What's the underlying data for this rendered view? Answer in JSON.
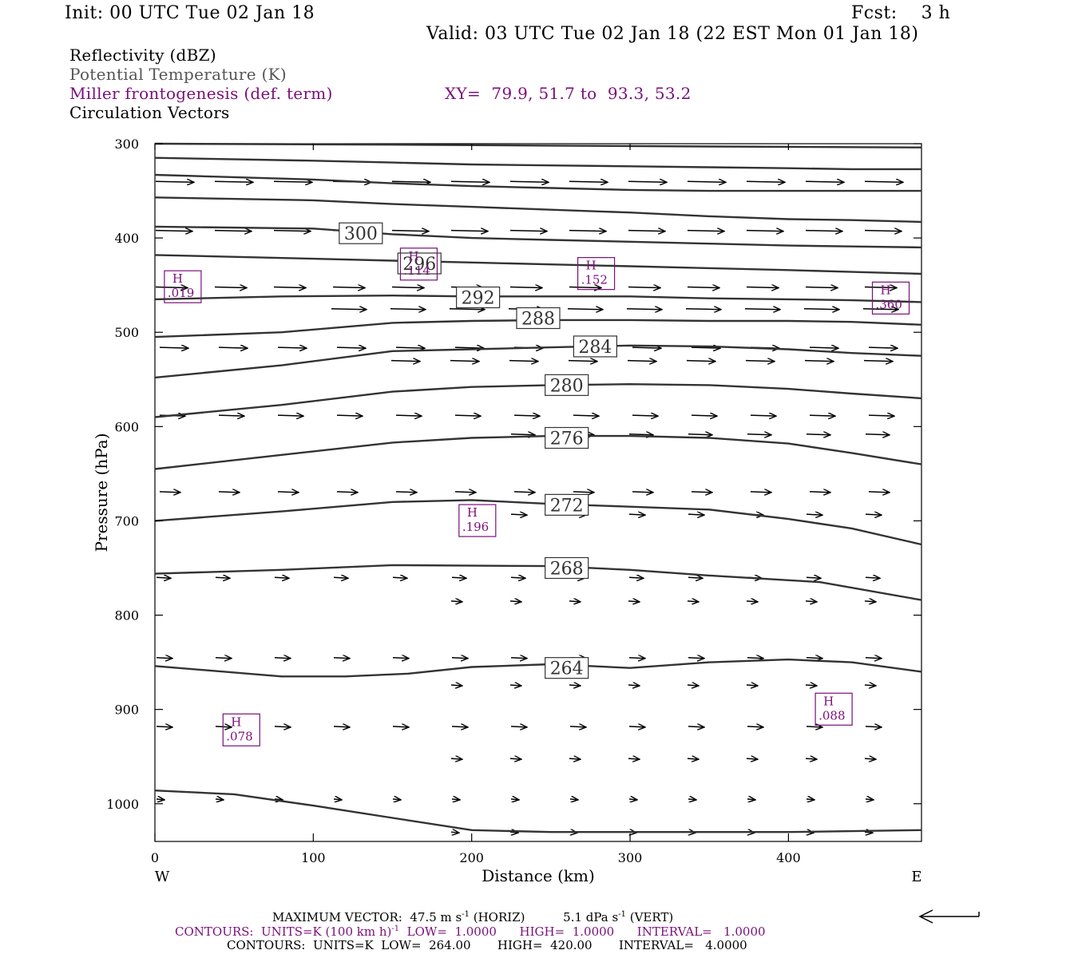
{
  "header": {
    "init": "Init: 00 UTC Tue 02 Jan 18",
    "fcst": "Fcst:    3 h",
    "valid": "Valid: 03 UTC Tue 02 Jan 18 (22 EST Mon 01 Jan 18)"
  },
  "fields": {
    "reflectivity": "Reflectivity (dBZ)",
    "theta": "Potential Temperature (K)",
    "frontogenesis": "Miller frontogenesis (def. term)",
    "xy": "XY=  79.9, 51.7 to  93.3, 53.2",
    "vectors": "Circulation Vectors"
  },
  "footer": {
    "max_vector_prefix": "MAXIMUM VECTOR:  47.5 m s",
    "max_vector_sup1": "-1",
    "max_vector_mid": " (HORIZ)          5.1 dPa s",
    "max_vector_sup2": "-1",
    "max_vector_end": " (VERT)",
    "contours1_prefix": "CONTOURS:  UNITS=K (100 km h)",
    "contours1_sup": "-1",
    "contours1_end": "  LOW=  1.0000      HIGH=  1.0000      INTERVAL=   1.0000",
    "contours2": "CONTOURS:  UNITS=K  LOW=  264.00       HIGH=  420.00       INTERVAL=   4.0000"
  },
  "colors": {
    "theta": "#333333",
    "frontogenesis": "#7a0f7a",
    "vector": "#000000"
  },
  "chart_data": {
    "type": "line",
    "xlabel": "Distance (km)",
    "ylabel": "Pressure (hPa)",
    "xlim": [
      0,
      484
    ],
    "ylim": [
      1040,
      300
    ],
    "x_ticks": [
      0,
      100,
      200,
      300,
      400
    ],
    "y_ticks": [
      300,
      400,
      500,
      600,
      700,
      800,
      900,
      1000
    ],
    "x_end_labels": {
      "left": "W",
      "right": "E"
    },
    "isentropes": [
      {
        "label": "264",
        "label_at": [
          260,
          856
        ],
        "points": [
          [
            0,
            854
          ],
          [
            80,
            865
          ],
          [
            120,
            865
          ],
          [
            160,
            862
          ],
          [
            200,
            855
          ],
          [
            250,
            852
          ],
          [
            300,
            856
          ],
          [
            350,
            850
          ],
          [
            400,
            847
          ],
          [
            440,
            850
          ],
          [
            484,
            860
          ]
        ]
      },
      {
        "label": "268",
        "label_at": [
          260,
          750
        ],
        "points": [
          [
            0,
            756
          ],
          [
            80,
            752
          ],
          [
            150,
            747
          ],
          [
            250,
            748
          ],
          [
            300,
            752
          ],
          [
            350,
            758
          ],
          [
            420,
            765
          ],
          [
            484,
            784
          ]
        ]
      },
      {
        "label": "272",
        "label_at": [
          260,
          683
        ],
        "points": [
          [
            0,
            700
          ],
          [
            80,
            690
          ],
          [
            150,
            680
          ],
          [
            200,
            678
          ],
          [
            250,
            682
          ],
          [
            300,
            685
          ],
          [
            350,
            688
          ],
          [
            400,
            698
          ],
          [
            440,
            708
          ],
          [
            484,
            725
          ]
        ]
      },
      {
        "label": "276",
        "label_at": [
          260,
          612
        ],
        "points": [
          [
            0,
            645
          ],
          [
            80,
            630
          ],
          [
            150,
            617
          ],
          [
            200,
            612
          ],
          [
            250,
            610
          ],
          [
            300,
            610
          ],
          [
            350,
            612
          ],
          [
            400,
            618
          ],
          [
            440,
            628
          ],
          [
            484,
            640
          ]
        ]
      },
      {
        "label": "280",
        "label_at": [
          260,
          556
        ],
        "points": [
          [
            0,
            590
          ],
          [
            80,
            577
          ],
          [
            150,
            563
          ],
          [
            200,
            558
          ],
          [
            250,
            556
          ],
          [
            300,
            555
          ],
          [
            350,
            556
          ],
          [
            400,
            560
          ],
          [
            440,
            565
          ],
          [
            484,
            570
          ]
        ]
      },
      {
        "label": "284",
        "label_at": [
          278,
          515
        ],
        "points": [
          [
            0,
            548
          ],
          [
            80,
            535
          ],
          [
            150,
            520
          ],
          [
            200,
            518
          ],
          [
            250,
            516
          ],
          [
            300,
            514
          ],
          [
            350,
            515
          ],
          [
            400,
            518
          ],
          [
            440,
            522
          ],
          [
            484,
            525
          ]
        ]
      },
      {
        "label": "288",
        "label_at": [
          242,
          485
        ],
        "points": [
          [
            0,
            505
          ],
          [
            80,
            500
          ],
          [
            150,
            490
          ],
          [
            200,
            488
          ],
          [
            250,
            487
          ],
          [
            300,
            487
          ],
          [
            350,
            488
          ],
          [
            400,
            488
          ],
          [
            440,
            489
          ],
          [
            484,
            492
          ]
        ]
      },
      {
        "label": "292",
        "label_at": [
          204,
          463
        ],
        "points": [
          [
            0,
            465
          ],
          [
            80,
            462
          ],
          [
            150,
            461
          ],
          [
            200,
            462
          ],
          [
            250,
            462
          ],
          [
            300,
            462
          ],
          [
            350,
            464
          ],
          [
            400,
            465
          ],
          [
            440,
            466
          ],
          [
            484,
            468
          ]
        ]
      },
      {
        "label": "296",
        "label_at": [
          167,
          427
        ],
        "points": [
          [
            0,
            418
          ],
          [
            100,
            422
          ],
          [
            150,
            424
          ],
          [
            200,
            426
          ],
          [
            250,
            428
          ],
          [
            300,
            430
          ],
          [
            350,
            432
          ],
          [
            400,
            434
          ],
          [
            440,
            436
          ],
          [
            484,
            438
          ]
        ]
      },
      {
        "label": "300",
        "label_at": [
          130,
          395
        ],
        "points": [
          [
            0,
            388
          ],
          [
            100,
            390
          ],
          [
            150,
            396
          ],
          [
            200,
            400
          ],
          [
            250,
            402
          ],
          [
            300,
            404
          ],
          [
            350,
            406
          ],
          [
            400,
            408
          ],
          [
            440,
            409
          ],
          [
            484,
            410
          ]
        ]
      },
      {
        "label": "",
        "label_at": null,
        "points": [
          [
            0,
            357
          ],
          [
            100,
            360
          ],
          [
            150,
            364
          ],
          [
            200,
            367
          ],
          [
            250,
            370
          ],
          [
            300,
            373
          ],
          [
            350,
            377
          ],
          [
            400,
            380
          ],
          [
            440,
            381
          ],
          [
            484,
            383
          ]
        ]
      },
      {
        "label": "",
        "label_at": null,
        "points": [
          [
            0,
            333
          ],
          [
            100,
            338
          ],
          [
            150,
            342
          ],
          [
            200,
            345
          ],
          [
            250,
            347
          ],
          [
            300,
            349
          ],
          [
            350,
            350
          ],
          [
            400,
            350
          ],
          [
            440,
            350
          ],
          [
            484,
            350
          ]
        ]
      },
      {
        "label": "",
        "label_at": null,
        "points": [
          [
            0,
            315
          ],
          [
            100,
            318
          ],
          [
            150,
            320
          ],
          [
            200,
            322
          ],
          [
            250,
            323
          ],
          [
            300,
            324
          ],
          [
            350,
            325
          ],
          [
            400,
            326
          ],
          [
            440,
            327
          ],
          [
            484,
            327
          ]
        ]
      },
      {
        "label": "",
        "label_at": null,
        "points": [
          [
            0,
            300
          ],
          [
            150,
            301
          ],
          [
            250,
            302
          ],
          [
            350,
            303
          ],
          [
            484,
            304
          ]
        ]
      },
      {
        "label": "",
        "label_at": null,
        "points": [
          [
            0,
            986
          ],
          [
            50,
            990
          ],
          [
            100,
            1002
          ],
          [
            150,
            1015
          ],
          [
            200,
            1028
          ],
          [
            250,
            1030
          ],
          [
            300,
            1030
          ],
          [
            400,
            1030
          ],
          [
            484,
            1028
          ]
        ]
      }
    ],
    "frontogenesis_maxima": [
      {
        "label": "H",
        "value": ".019",
        "x": 6,
        "p": 450
      },
      {
        "label": "H",
        "value": ".114",
        "x": 155,
        "p": 426
      },
      {
        "label": "H",
        "value": ".152",
        "x": 267,
        "p": 436
      },
      {
        "label": "H",
        "value": ".360",
        "x": 453,
        "p": 462
      },
      {
        "label": "H",
        "value": ".196",
        "x": 192,
        "p": 698
      },
      {
        "label": "H",
        "value": ".078",
        "x": 43,
        "p": 920
      },
      {
        "label": "H",
        "value": ".088",
        "x": 417,
        "p": 898
      }
    ]
  }
}
